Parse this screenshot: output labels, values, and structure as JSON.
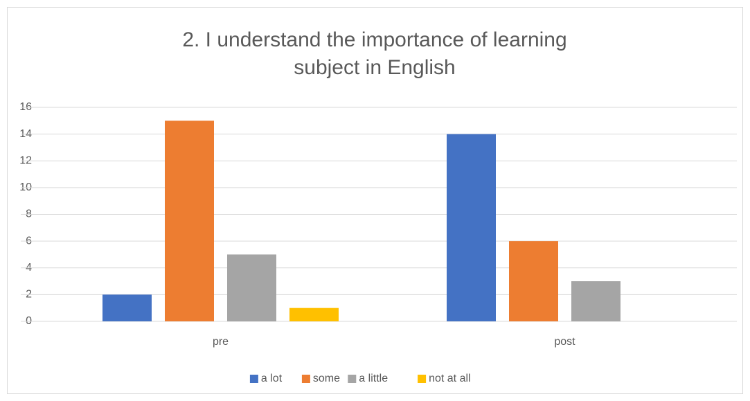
{
  "chart_data": {
    "type": "bar",
    "title": "2. I understand the importance of learning subject in English",
    "categories": [
      "pre",
      "post"
    ],
    "series": [
      {
        "name": "a lot",
        "color": "#4472c4",
        "values": [
          2,
          14
        ]
      },
      {
        "name": "some",
        "color": "#ed7d31",
        "values": [
          15,
          6
        ]
      },
      {
        "name": "a little",
        "color": "#a5a5a5",
        "values": [
          5,
          3
        ]
      },
      {
        "name": "not at all",
        "color": "#ffc000",
        "values": [
          1,
          0
        ]
      }
    ],
    "ylim": [
      0,
      16
    ],
    "yticks": [
      0,
      2,
      4,
      6,
      8,
      10,
      12,
      14,
      16
    ],
    "grid": true,
    "legend": "bottom"
  }
}
